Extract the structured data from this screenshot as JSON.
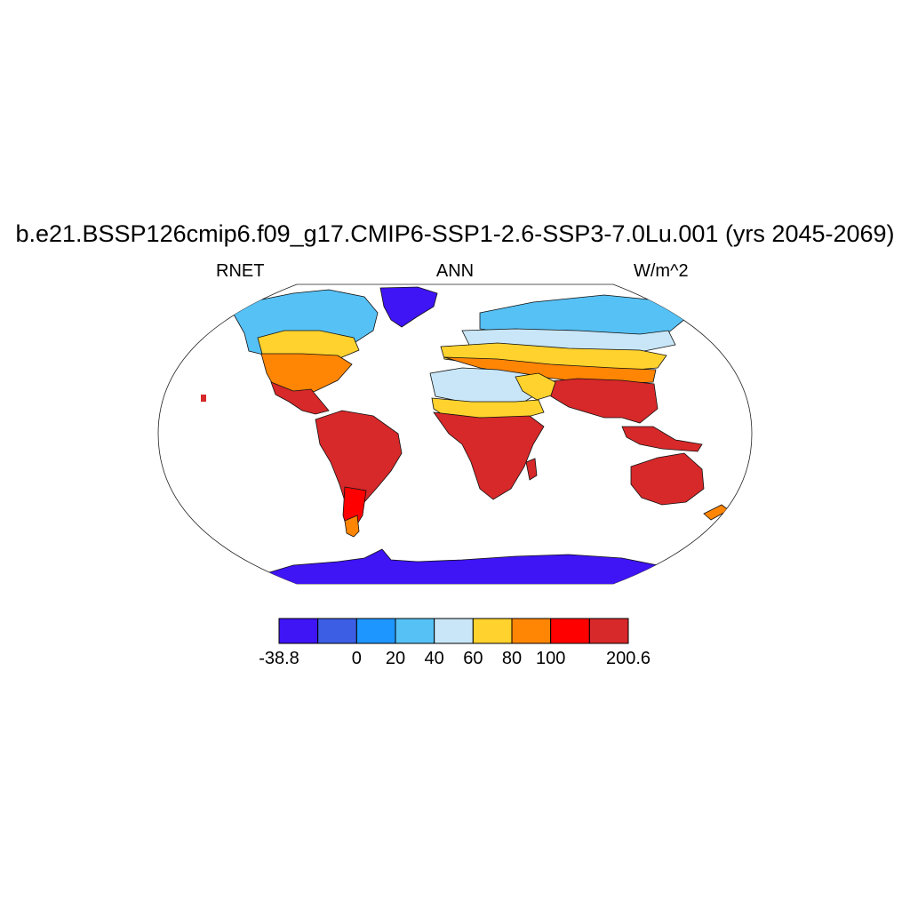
{
  "title": "b.e21.BSSP126cmip6.f09_g17.CMIP6-SSP1-2.6-SSP3-7.0Lu.001 (yrs 2045-2069)",
  "left_label": "RNET",
  "center_label": "ANN",
  "right_label": "W/m^2",
  "colorbar": {
    "colors": [
      "#3f14f5",
      "#3c5ee4",
      "#1e96ff",
      "#56c1f5",
      "#c8e6f8",
      "#ffd22d",
      "#ff8505",
      "#ff0000",
      "#d7282a"
    ],
    "tick_labels": [
      "-38.8",
      "0",
      "20",
      "40",
      "60",
      "80",
      "100",
      "200.6"
    ],
    "tick_boundary_index": [
      0,
      2,
      3,
      4,
      5,
      6,
      7,
      9
    ]
  }
}
